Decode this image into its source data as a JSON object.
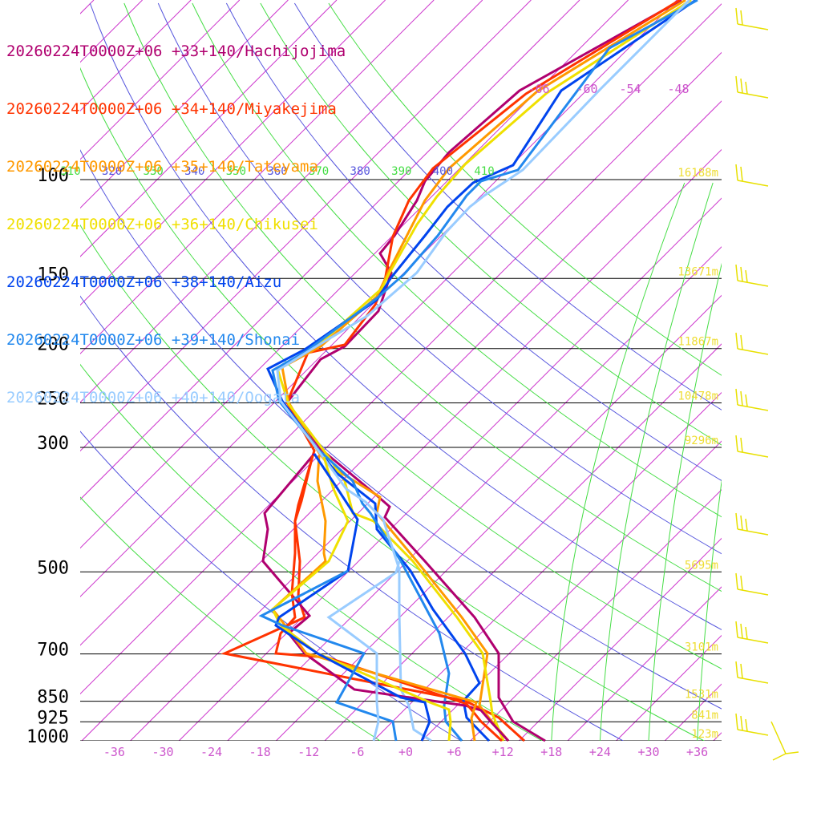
{
  "chart_data": {
    "type": "line",
    "subtype": "skew-T log-P sounding",
    "legend_position": "top-left",
    "stations": [
      {
        "label": "20260224T0000Z+06 +33+140/Hachijojima",
        "color": "#b0006f"
      },
      {
        "label": "20260224T0000Z+06 +34+140/Miyakejima",
        "color": "#ff3300"
      },
      {
        "label": "20260224T0000Z+06 +35+140/Tateyama",
        "color": "#ff9900"
      },
      {
        "label": "20260224T0000Z+06 +36+140/Chikusei",
        "color": "#f0e000"
      },
      {
        "label": "20260224T0000Z+06 +38+140/Aizu",
        "color": "#0044ee"
      },
      {
        "label": "20260224T0000Z+06 +39+140/Shonai",
        "color": "#2288ee"
      },
      {
        "label": "20260224T0000Z+06 +40+140/Oogata",
        "color": "#99ccff"
      }
    ],
    "pressure_levels": [
      {
        "p": 100,
        "label": "100",
        "height": "16188m"
      },
      {
        "p": 150,
        "label": "150",
        "height": "13671m"
      },
      {
        "p": 200,
        "label": "200",
        "height": "11867m"
      },
      {
        "p": 250,
        "label": "250",
        "height": "10478m"
      },
      {
        "p": 300,
        "label": "300",
        "height": "9296m"
      },
      {
        "p": 500,
        "label": "500",
        "height": "5695m"
      },
      {
        "p": 700,
        "label": "700",
        "height": "3101m"
      },
      {
        "p": 850,
        "label": "850",
        "height": "1531m"
      },
      {
        "p": 925,
        "label": "925",
        "height": "841m"
      },
      {
        "p": 1000,
        "label": "1000",
        "height": "123m"
      }
    ],
    "temperature_ticks": [
      "-36",
      "-30",
      "-24",
      "-18",
      "-12",
      "-6",
      "+0",
      "+6",
      "+12",
      "+18",
      "+24",
      "+30",
      "+36"
    ],
    "top_temperature_labels": [
      "-66",
      "-60",
      "-54",
      "-48"
    ],
    "theta_labels": [
      "310",
      "320",
      "330",
      "340",
      "350",
      "360",
      "370",
      "380",
      "390",
      "400",
      "410"
    ],
    "colors": {
      "isobar": "#000000",
      "isotherm": "#cc33cc",
      "dry_adiabat": "#5555dd",
      "moist_adiabat": "#44dd44",
      "height_label": "#eedd33",
      "barb": "#e8e000",
      "tick_label": "#cc55cc"
    }
  }
}
